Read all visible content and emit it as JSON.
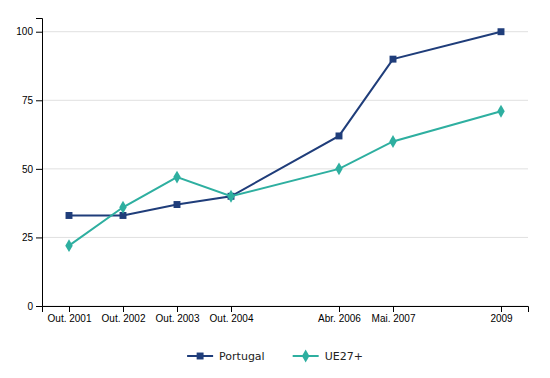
{
  "chart_data": {
    "type": "line",
    "x": [
      2001,
      2002,
      2003,
      2004,
      2006,
      2007,
      2009
    ],
    "xlim": [
      2000.5,
      2009.5
    ],
    "xticks": [
      {
        "value": 2001,
        "label": "Out. 2001"
      },
      {
        "value": 2002,
        "label": "Out. 2002"
      },
      {
        "value": 2003,
        "label": "Out. 2003"
      },
      {
        "value": 2004,
        "label": "Out. 2004"
      },
      {
        "value": 2006,
        "label": "Abr. 2006"
      },
      {
        "value": 2007,
        "label": "Mai. 2007"
      },
      2009
    ],
    "series": [
      {
        "name": "Portugal",
        "color": "#1F3D7A",
        "marker": "square",
        "values": [
          33,
          33,
          37,
          40,
          62,
          90,
          100
        ]
      },
      {
        "name": "UE27+",
        "color": "#2EAFA0",
        "marker": "diamond",
        "values": [
          22,
          36,
          47,
          40,
          50,
          60,
          71
        ]
      }
    ],
    "ylim": [
      0,
      105
    ],
    "yticks": [
      0,
      25,
      50,
      75,
      100
    ],
    "grid": true,
    "legend": "bottom"
  }
}
